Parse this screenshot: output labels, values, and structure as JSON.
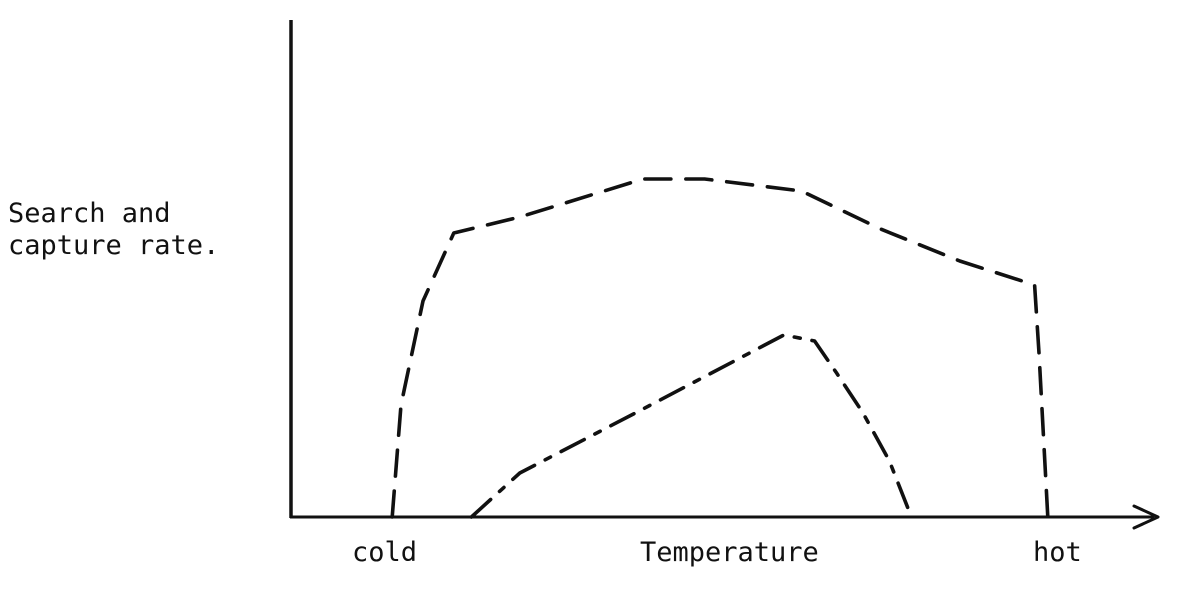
{
  "chart_data": {
    "type": "line",
    "title": "",
    "xlabel": "Temperature",
    "ylabel_lines": [
      "Search and",
      "capture rate."
    ],
    "x_tick_labels": {
      "low": "cold",
      "high": "hot"
    },
    "xlim": [
      0,
      100
    ],
    "ylim": [
      0,
      100
    ],
    "grid": false,
    "legend": "none",
    "x_axis_arrow": true,
    "ink_color": "#111111",
    "series": [
      {
        "name": "upper-curve",
        "style": "dashed",
        "x": [
          11.5,
          12.5,
          15,
          18.5,
          26,
          40,
          47,
          58,
          67,
          76,
          84.5,
          85,
          86
        ],
        "y": [
          0,
          28,
          54,
          71,
          75,
          84.5,
          84.5,
          81.5,
          72,
          64,
          58,
          41,
          0
        ]
      },
      {
        "name": "lower-curve",
        "style": "dash-dot",
        "x": [
          20.5,
          26,
          40,
          56,
          59.5,
          62,
          65,
          68,
          70.5
        ],
        "y": [
          0,
          11,
          27,
          45.5,
          44,
          36,
          26,
          14,
          0
        ]
      }
    ]
  }
}
